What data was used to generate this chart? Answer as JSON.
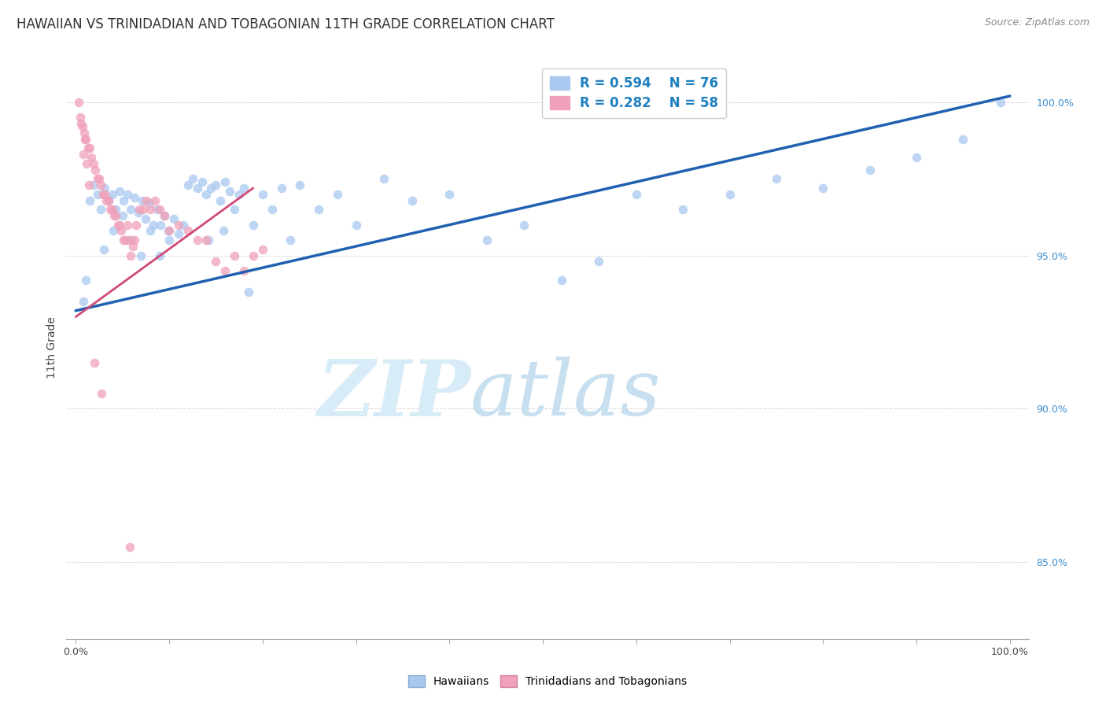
{
  "title": "HAWAIIAN VS TRINIDADIAN AND TOBAGONIAN 11TH GRADE CORRELATION CHART",
  "source": "Source: ZipAtlas.com",
  "ylabel": "11th Grade",
  "blue_color": "#A8C8F0",
  "blue_line_color": "#2060B0",
  "pink_color": "#F0A0B8",
  "pink_line_color": "#D04878",
  "legend_text_color": "#2080C0",
  "watermark_zip": "ZIP",
  "watermark_atlas": "atlas",
  "watermark_color": "#D8ECF8",
  "grid_color": "#CCCCCC",
  "title_fontsize": 12,
  "label_fontsize": 10,
  "tick_fontsize": 9,
  "source_fontsize": 9,
  "legend_blue_r": "0.594",
  "legend_blue_n": "76",
  "legend_pink_r": "0.282",
  "legend_pink_n": "58",
  "xlim": [
    -1.0,
    102.0
  ],
  "ylim": [
    82.5,
    101.5
  ],
  "blue_line_x0": 0.0,
  "blue_line_x1": 100.0,
  "blue_line_y0": 93.2,
  "blue_line_y1": 100.2,
  "pink_line_x0": 0.0,
  "pink_line_x1": 19.0,
  "pink_line_y0": 93.0,
  "pink_line_y1": 97.2,
  "blue_x": [
    0.8,
    1.1,
    1.5,
    1.9,
    2.3,
    2.7,
    3.1,
    3.5,
    3.9,
    4.3,
    4.7,
    5.1,
    5.5,
    5.9,
    6.3,
    6.7,
    7.1,
    7.5,
    7.9,
    8.3,
    8.7,
    9.1,
    9.5,
    9.9,
    10.5,
    11.0,
    11.5,
    12.0,
    12.5,
    13.0,
    13.5,
    14.0,
    14.5,
    15.0,
    15.5,
    16.0,
    16.5,
    17.0,
    17.5,
    18.0,
    19.0,
    20.0,
    21.0,
    22.0,
    23.0,
    24.0,
    26.0,
    28.0,
    30.0,
    33.0,
    36.0,
    40.0,
    44.0,
    48.0,
    52.0,
    56.0,
    60.0,
    65.0,
    70.0,
    75.0,
    80.0,
    85.0,
    90.0,
    95.0,
    99.0,
    3.0,
    4.0,
    5.0,
    6.0,
    7.0,
    8.0,
    9.0,
    10.0,
    14.2,
    15.8,
    18.5
  ],
  "blue_y": [
    93.5,
    94.2,
    96.8,
    97.3,
    97.0,
    96.5,
    97.2,
    96.8,
    97.0,
    96.5,
    97.1,
    96.8,
    97.0,
    96.5,
    96.9,
    96.4,
    96.8,
    96.2,
    96.7,
    96.0,
    96.5,
    96.0,
    96.3,
    95.8,
    96.2,
    95.7,
    96.0,
    97.3,
    97.5,
    97.2,
    97.4,
    97.0,
    97.2,
    97.3,
    96.8,
    97.4,
    97.1,
    96.5,
    97.0,
    97.2,
    96.0,
    97.0,
    96.5,
    97.2,
    95.5,
    97.3,
    96.5,
    97.0,
    96.0,
    97.5,
    96.8,
    97.0,
    95.5,
    96.0,
    94.2,
    94.8,
    97.0,
    96.5,
    97.0,
    97.5,
    97.2,
    97.8,
    98.2,
    98.8,
    100.0,
    95.2,
    95.8,
    96.3,
    95.5,
    95.0,
    95.8,
    95.0,
    95.5,
    95.5,
    95.8,
    93.8
  ],
  "pink_x": [
    0.3,
    0.5,
    0.7,
    0.9,
    1.1,
    1.3,
    1.5,
    1.7,
    1.9,
    2.1,
    2.3,
    2.5,
    2.7,
    2.9,
    3.1,
    3.3,
    3.5,
    3.7,
    3.9,
    4.1,
    4.3,
    4.5,
    4.7,
    4.9,
    5.1,
    5.3,
    5.5,
    5.7,
    5.9,
    6.1,
    6.3,
    6.5,
    6.8,
    7.2,
    7.6,
    8.0,
    8.5,
    9.0,
    9.5,
    10.0,
    11.0,
    12.0,
    13.0,
    14.0,
    15.0,
    16.0,
    17.0,
    18.0,
    19.0,
    20.0,
    0.6,
    0.8,
    1.0,
    1.2,
    1.4,
    2.0,
    2.8,
    5.8
  ],
  "pink_y": [
    100.0,
    99.5,
    99.2,
    99.0,
    98.8,
    98.5,
    98.5,
    98.2,
    98.0,
    97.8,
    97.5,
    97.5,
    97.3,
    97.0,
    97.0,
    96.8,
    96.8,
    96.5,
    96.5,
    96.3,
    96.3,
    96.0,
    96.0,
    95.8,
    95.5,
    95.5,
    96.0,
    95.5,
    95.0,
    95.3,
    95.5,
    96.0,
    96.5,
    96.5,
    96.8,
    96.5,
    96.8,
    96.5,
    96.3,
    95.8,
    96.0,
    95.8,
    95.5,
    95.5,
    94.8,
    94.5,
    95.0,
    94.5,
    95.0,
    95.2,
    99.3,
    98.3,
    98.8,
    98.0,
    97.3,
    91.5,
    90.5,
    85.5
  ]
}
